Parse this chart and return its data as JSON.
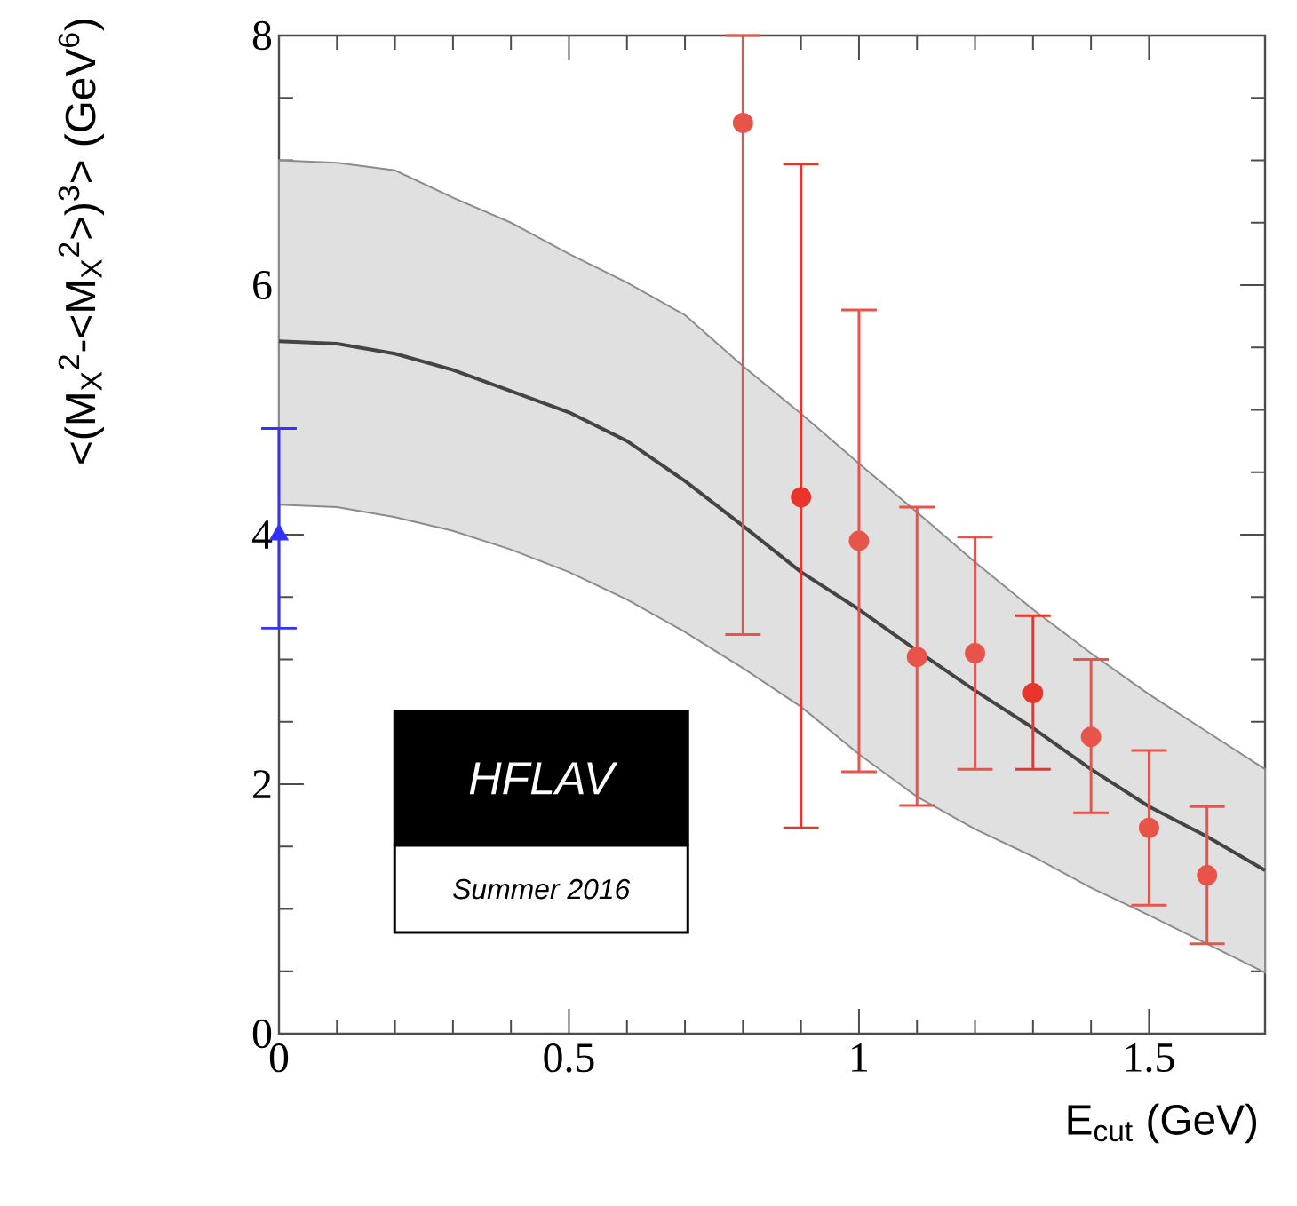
{
  "chart_data": {
    "type": "scatter",
    "xlabel": "E$_{cut}$ (GeV)",
    "ylabel": "<(M$_{X}$$^{2}$-<M$_{X}$$^{2}$>)$^{3}$> (GeV$^{6}$)",
    "xlim": [
      0,
      1.7
    ],
    "ylim": [
      0,
      8
    ],
    "xticks": [
      0,
      0.5,
      1,
      1.5
    ],
    "yticks": [
      0,
      2,
      4,
      6,
      8
    ],
    "grid": false,
    "annotations": [
      "HFLAV",
      "Summer 2016"
    ],
    "series": [
      {
        "type": "line",
        "color": "#444444",
        "x": [
          0,
          0.1,
          0.2,
          0.3,
          0.4,
          0.5,
          0.6,
          0.7,
          0.8,
          0.9,
          1.0,
          1.1,
          1.2,
          1.3,
          1.4,
          1.5,
          1.6,
          1.7
        ],
        "values": [
          5.55,
          5.53,
          5.45,
          5.32,
          5.15,
          4.98,
          4.75,
          4.43,
          4.07,
          3.7,
          3.4,
          3.07,
          2.75,
          2.45,
          2.12,
          1.82,
          1.58,
          1.31
        ],
        "lower": [
          4.24,
          4.22,
          4.14,
          4.03,
          3.88,
          3.7,
          3.48,
          3.22,
          2.93,
          2.62,
          2.24,
          1.9,
          1.64,
          1.42,
          1.17,
          0.95,
          0.72,
          0.49
        ],
        "upper": [
          7.0,
          6.98,
          6.92,
          6.7,
          6.5,
          6.25,
          6.02,
          5.76,
          5.35,
          4.97,
          4.57,
          4.18,
          3.78,
          3.4,
          3.05,
          2.72,
          2.42,
          2.12
        ],
        "marker": "none"
      },
      {
        "color": "#e8534a",
        "marker": "circle",
        "x": [
          0.8,
          1.0,
          1.1,
          1.2,
          1.4,
          1.5,
          1.6
        ],
        "values": [
          7.3,
          3.95,
          3.02,
          3.05,
          2.38,
          1.65,
          1.27
        ],
        "errors": [
          [
            3.2,
            8.0
          ],
          [
            2.1,
            5.8
          ],
          [
            1.83,
            4.22
          ],
          [
            2.12,
            3.98
          ],
          [
            1.77,
            3.0
          ],
          [
            1.03,
            2.27
          ],
          [
            0.72,
            1.82
          ]
        ]
      },
      {
        "color": "#e8342a",
        "marker": "circle",
        "x": [
          0.9,
          1.3
        ],
        "values": [
          4.3,
          2.73
        ],
        "errors": [
          [
            1.65,
            6.97
          ],
          [
            2.12,
            3.35
          ]
        ]
      },
      {
        "color": "#3333ff",
        "marker": "triangle",
        "x": [
          0
        ],
        "values": [
          4.0
        ],
        "errors": [
          [
            3.25,
            4.85
          ]
        ]
      }
    ]
  }
}
